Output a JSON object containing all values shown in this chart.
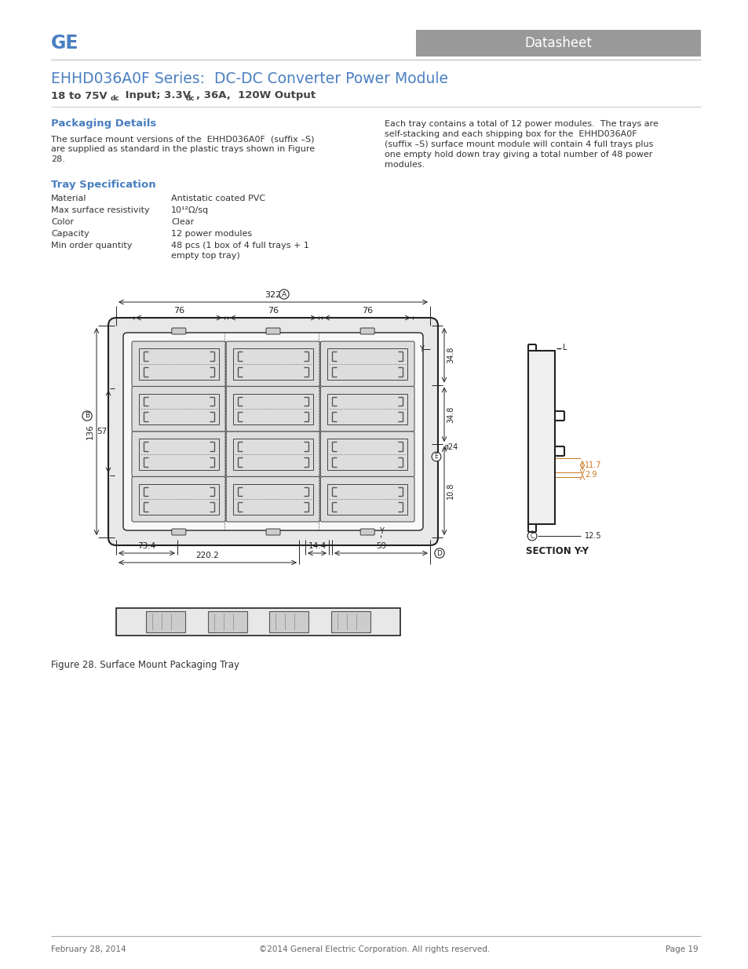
{
  "page_bg": "#ffffff",
  "header_bar_color": "#999999",
  "header_bar_text": "Datasheet",
  "header_bar_text_color": "#ffffff",
  "ge_text": "GE",
  "ge_color": "#4a7fc1",
  "title_text": "EHHD036A0F Series:  DC-DC Converter Power Module",
  "title_color": "#4a7fc1",
  "subtitle_color": "#444444",
  "section1_title": "Packaging Details",
  "section1_title_color": "#4a7fc1",
  "section1_body": "The surface mount versions of the  EHHD036A0F  (suffix –S)\nare supplied as standard in the plastic trays shown in Figure\n28.",
  "section2_title": "Tray Specification",
  "section2_title_color": "#4a7fc1",
  "tray_spec_labels": [
    "Material",
    "Max surface resistivity",
    "Color",
    "Capacity",
    "Min order quantity"
  ],
  "tray_spec_values": [
    "Antistatic coated PVC",
    "10¹²Ω/sq",
    "Clear",
    "12 power modules",
    "48 pcs (1 box of 4 full trays + 1\nempty top tray)"
  ],
  "right_col_text": "Each tray contains a total of 12 power modules.  The trays are\nself-stacking and each shipping box for the  EHHD036A0F\n(suffix –S) surface mount module will contain 4 full trays plus\none empty hold down tray giving a total number of 48 power\nmodules.",
  "figure_caption": "Figure 28. Surface Mount Packaging Tray",
  "footer_left": "February 28, 2014",
  "footer_center": "©2014 General Electric Corporation. All rights reserved.",
  "footer_right": "Page 19",
  "text_color": "#333333",
  "dim_color": "#222222",
  "dim_color_orange": "#cc7722",
  "line_color": "#333333"
}
